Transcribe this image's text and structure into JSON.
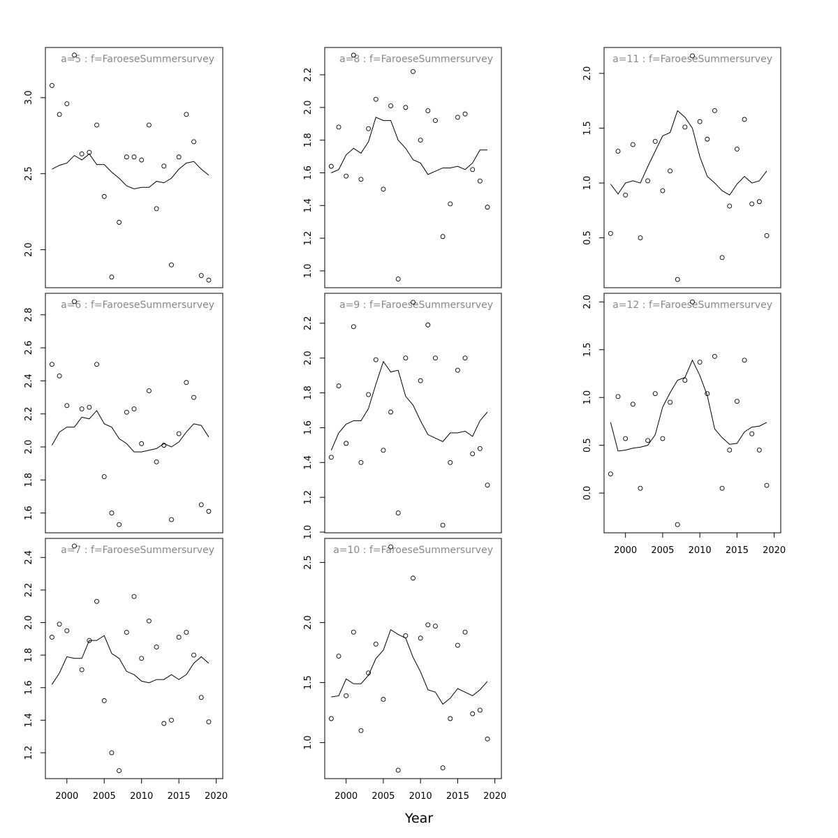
{
  "xlabel": "Year",
  "chart_data": [
    {
      "type": "line",
      "title": "a=5  :  f=FaroeseSummersurvey",
      "x": [
        1998,
        1999,
        2000,
        2001,
        2002,
        2003,
        2004,
        2005,
        2006,
        2007,
        2008,
        2009,
        2010,
        2011,
        2012,
        2013,
        2014,
        2015,
        2016,
        2017,
        2018,
        2019
      ],
      "xlim": [
        1997.12,
        2020.88
      ],
      "ylim": [
        1.75,
        3.33
      ],
      "yticks": [
        {
          "value": 2,
          "label": "2.0"
        },
        2.5,
        {
          "value": 3,
          "label": "3.0"
        }
      ],
      "series": [
        {
          "style": "points",
          "color": "#000000",
          "values": [
            3.08,
            2.89,
            2.96,
            3.28,
            2.63,
            2.64,
            2.82,
            2.35,
            1.82,
            2.18,
            2.61,
            2.61,
            2.59,
            2.82,
            2.27,
            2.55,
            1.9,
            2.61,
            2.89,
            2.71,
            1.83,
            1.8
          ]
        },
        {
          "style": "line",
          "color": "#000000",
          "values": [
            2.53,
            2.555,
            2.57,
            2.62,
            2.59,
            2.63,
            2.56,
            2.56,
            2.51,
            2.47,
            2.42,
            2.4,
            2.41,
            2.41,
            2.45,
            2.44,
            2.47,
            2.53,
            2.57,
            2.58,
            2.53,
            2.49
          ]
        }
      ]
    },
    {
      "type": "line",
      "title": "a=6  :  f=FaroeseSummersurvey",
      "x": [
        1998,
        1999,
        2000,
        2001,
        2002,
        2003,
        2004,
        2005,
        2006,
        2007,
        2008,
        2009,
        2010,
        2011,
        2012,
        2013,
        2014,
        2015,
        2016,
        2017,
        2018,
        2019
      ],
      "xlim": [
        1997.12,
        2020.88
      ],
      "ylim": [
        1.48,
        2.93
      ],
      "yticks": [
        1.6,
        1.8,
        {
          "value": 2,
          "label": "2.0"
        },
        2.2,
        2.4,
        2.6,
        2.8
      ],
      "series": [
        {
          "style": "points",
          "color": "#000000",
          "values": [
            2.5,
            2.43,
            2.25,
            2.88,
            2.23,
            2.24,
            2.5,
            1.82,
            1.6,
            1.53,
            2.21,
            2.23,
            2.02,
            2.34,
            1.91,
            2.01,
            1.56,
            2.08,
            2.39,
            2.3,
            1.65,
            1.61
          ]
        },
        {
          "style": "line",
          "color": "#000000",
          "values": [
            2.01,
            2.09,
            2.12,
            2.12,
            2.18,
            2.17,
            2.22,
            2.14,
            2.12,
            2.05,
            2.02,
            1.97,
            1.97,
            1.98,
            1.99,
            2.02,
            2.0,
            2.03,
            2.09,
            2.14,
            2.13,
            2.06
          ]
        }
      ]
    },
    {
      "type": "line",
      "title": "a=7  :  f=FaroeseSummersurvey",
      "x": [
        1998,
        1999,
        2000,
        2001,
        2002,
        2003,
        2004,
        2005,
        2006,
        2007,
        2008,
        2009,
        2010,
        2011,
        2012,
        2013,
        2014,
        2015,
        2016,
        2017,
        2018,
        2019
      ],
      "xlim": [
        1997.12,
        2020.88
      ],
      "ylim": [
        1.041,
        2.517
      ],
      "xticks": [
        2000,
        2005,
        2010,
        2015,
        2020
      ],
      "yticks": [
        1.2,
        1.4,
        1.6,
        1.8,
        {
          "value": 2,
          "label": "2.0"
        },
        2.2,
        2.4
      ],
      "series": [
        {
          "style": "points",
          "color": "#000000",
          "values": [
            1.91,
            1.99,
            1.95,
            2.47,
            1.71,
            1.89,
            2.13,
            1.52,
            1.2,
            1.09,
            1.94,
            2.16,
            1.78,
            2.01,
            1.85,
            1.38,
            1.4,
            1.91,
            1.94,
            1.8,
            1.54,
            1.39
          ]
        },
        {
          "style": "line",
          "color": "#000000",
          "values": [
            1.62,
            1.69,
            1.79,
            1.78,
            1.78,
            1.89,
            1.89,
            1.92,
            1.81,
            1.78,
            1.7,
            1.68,
            1.64,
            1.63,
            1.65,
            1.65,
            1.68,
            1.65,
            1.68,
            1.75,
            1.79,
            1.75
          ]
        }
      ]
    },
    {
      "type": "line",
      "title": "a=8  :  f=FaroeseSummersurvey",
      "x": [
        1998,
        1999,
        2000,
        2001,
        2002,
        2003,
        2004,
        2005,
        2006,
        2007,
        2008,
        2009,
        2010,
        2011,
        2012,
        2013,
        2014,
        2015,
        2016,
        2017,
        2018,
        2019
      ],
      "xlim": [
        1997.12,
        2020.88
      ],
      "ylim": [
        0.897,
        2.367
      ],
      "yticks": [
        {
          "value": 1,
          "label": "1.0"
        },
        1.2,
        1.4,
        1.6,
        1.8,
        {
          "value": 2,
          "label": "2.0"
        },
        2.2
      ],
      "series": [
        {
          "style": "points",
          "color": "#000000",
          "values": [
            1.64,
            1.88,
            1.58,
            2.32,
            1.56,
            1.87,
            2.05,
            1.5,
            2.01,
            0.95,
            2.0,
            2.22,
            1.8,
            1.98,
            1.92,
            1.21,
            1.41,
            1.94,
            1.96,
            1.62,
            1.55,
            1.39
          ]
        },
        {
          "style": "line",
          "color": "#000000",
          "values": [
            1.6,
            1.62,
            1.71,
            1.75,
            1.72,
            1.79,
            1.94,
            1.92,
            1.92,
            1.8,
            1.75,
            1.68,
            1.66,
            1.59,
            1.61,
            1.63,
            1.63,
            1.64,
            1.62,
            1.66,
            1.74,
            1.74
          ]
        }
      ]
    },
    {
      "type": "line",
      "title": "a=9  :  f=FaroeseSummersurvey",
      "x": [
        1998,
        1999,
        2000,
        2001,
        2002,
        2003,
        2004,
        2005,
        2006,
        2007,
        2008,
        2009,
        2010,
        2011,
        2012,
        2013,
        2014,
        2015,
        2016,
        2017,
        2018,
        2019
      ],
      "xlim": [
        1997.12,
        2020.88
      ],
      "ylim": [
        0.996,
        2.372
      ],
      "yticks": [
        {
          "value": 1,
          "label": "1.0"
        },
        1.2,
        1.4,
        1.6,
        1.8,
        {
          "value": 2,
          "label": "2.0"
        },
        2.2
      ],
      "series": [
        {
          "style": "points",
          "color": "#000000",
          "values": [
            1.43,
            1.84,
            1.51,
            2.18,
            1.4,
            1.79,
            1.99,
            1.47,
            1.69,
            1.11,
            2.0,
            2.32,
            1.87,
            2.19,
            2.0,
            1.04,
            1.4,
            1.93,
            2.0,
            1.45,
            1.48,
            1.27
          ]
        },
        {
          "style": "line",
          "color": "#000000",
          "values": [
            1.47,
            1.57,
            1.62,
            1.64,
            1.64,
            1.71,
            1.85,
            1.98,
            1.92,
            1.93,
            1.78,
            1.73,
            1.64,
            1.56,
            1.54,
            1.52,
            1.57,
            1.57,
            1.58,
            1.55,
            1.64,
            1.69
          ]
        }
      ]
    },
    {
      "type": "line",
      "title": "a=10  :  f=FaroeseSummersurvey",
      "x": [
        1998,
        1999,
        2000,
        2001,
        2002,
        2003,
        2004,
        2005,
        2006,
        2007,
        2008,
        2009,
        2010,
        2011,
        2012,
        2013,
        2014,
        2015,
        2016,
        2017,
        2018,
        2019
      ],
      "xlim": [
        1997.12,
        2020.88
      ],
      "ylim": [
        0.7,
        2.7
      ],
      "xticks": [
        2000,
        2005,
        2010,
        2015,
        2020
      ],
      "yticks": [
        {
          "value": 1,
          "label": "1.0"
        },
        1.5,
        {
          "value": 2,
          "label": "2.0"
        },
        2.5
      ],
      "series": [
        {
          "style": "points",
          "color": "#000000",
          "values": [
            1.2,
            1.72,
            1.39,
            1.92,
            1.1,
            1.58,
            1.82,
            1.36,
            2.63,
            0.77,
            1.89,
            2.37,
            1.87,
            1.98,
            1.97,
            0.79,
            1.2,
            1.81,
            1.92,
            1.24,
            1.27,
            1.03
          ]
        },
        {
          "style": "line",
          "color": "#000000",
          "values": [
            1.38,
            1.39,
            1.53,
            1.49,
            1.49,
            1.56,
            1.7,
            1.77,
            1.94,
            1.9,
            1.87,
            1.71,
            1.59,
            1.44,
            1.42,
            1.32,
            1.37,
            1.45,
            1.42,
            1.39,
            1.44,
            1.51
          ]
        }
      ]
    },
    {
      "type": "line",
      "title": "a=11  :  f=FaroeseSummersurvey",
      "x": [
        1998,
        1999,
        2000,
        2001,
        2002,
        2003,
        2004,
        2005,
        2006,
        2007,
        2008,
        2009,
        2010,
        2011,
        2012,
        2013,
        2014,
        2015,
        2016,
        2017,
        2018,
        2019
      ],
      "xlim": [
        1997.12,
        2020.88
      ],
      "ylim": [
        0.045,
        2.236
      ],
      "yticks": [
        0.5,
        {
          "value": 1,
          "label": "1.0"
        },
        1.5,
        {
          "value": 2,
          "label": "2.0"
        }
      ],
      "series": [
        {
          "style": "points",
          "color": "#000000",
          "values": [
            0.54,
            1.29,
            0.89,
            1.35,
            0.5,
            1.02,
            1.38,
            0.93,
            1.11,
            0.12,
            1.51,
            2.16,
            1.56,
            1.4,
            1.66,
            0.32,
            0.79,
            1.31,
            1.58,
            0.81,
            0.83,
            0.52
          ]
        },
        {
          "style": "line",
          "color": "#000000",
          "values": [
            0.99,
            0.9,
            1.0,
            1.02,
            1.0,
            1.15,
            1.29,
            1.43,
            1.46,
            1.66,
            1.6,
            1.5,
            1.24,
            1.06,
            1.0,
            0.93,
            0.89,
            0.99,
            1.06,
            1.0,
            1.02,
            1.11
          ]
        }
      ]
    },
    {
      "type": "line",
      "title": "a=12  :  f=FaroeseSummersurvey",
      "x": [
        1998,
        1999,
        2000,
        2001,
        2002,
        2003,
        2004,
        2005,
        2006,
        2007,
        2008,
        2009,
        2010,
        2011,
        2012,
        2013,
        2014,
        2015,
        2016,
        2017,
        2018,
        2019
      ],
      "xlim": [
        1997.12,
        2020.88
      ],
      "ylim": [
        -0.416,
        2.09
      ],
      "xticks": [
        2000,
        2005,
        2010,
        2015,
        2020
      ],
      "yticks": [
        {
          "value": 0,
          "label": "0.0"
        },
        0.5,
        {
          "value": 1,
          "label": "1.0"
        },
        1.5,
        {
          "value": 2,
          "label": "2.0"
        }
      ],
      "series": [
        {
          "style": "points",
          "color": "#000000",
          "values": [
            0.2,
            1.01,
            0.57,
            0.93,
            0.05,
            0.55,
            1.04,
            0.57,
            0.95,
            -0.33,
            1.18,
            2.0,
            1.37,
            1.04,
            1.43,
            0.05,
            0.45,
            0.96,
            1.39,
            0.62,
            0.45,
            0.08
          ]
        },
        {
          "style": "line",
          "color": "#000000",
          "values": [
            0.74,
            0.44,
            0.45,
            0.47,
            0.48,
            0.5,
            0.61,
            0.9,
            1.05,
            1.18,
            1.21,
            1.39,
            1.23,
            1.02,
            0.67,
            0.58,
            0.51,
            0.52,
            0.64,
            0.69,
            0.7,
            0.74
          ]
        }
      ]
    }
  ]
}
